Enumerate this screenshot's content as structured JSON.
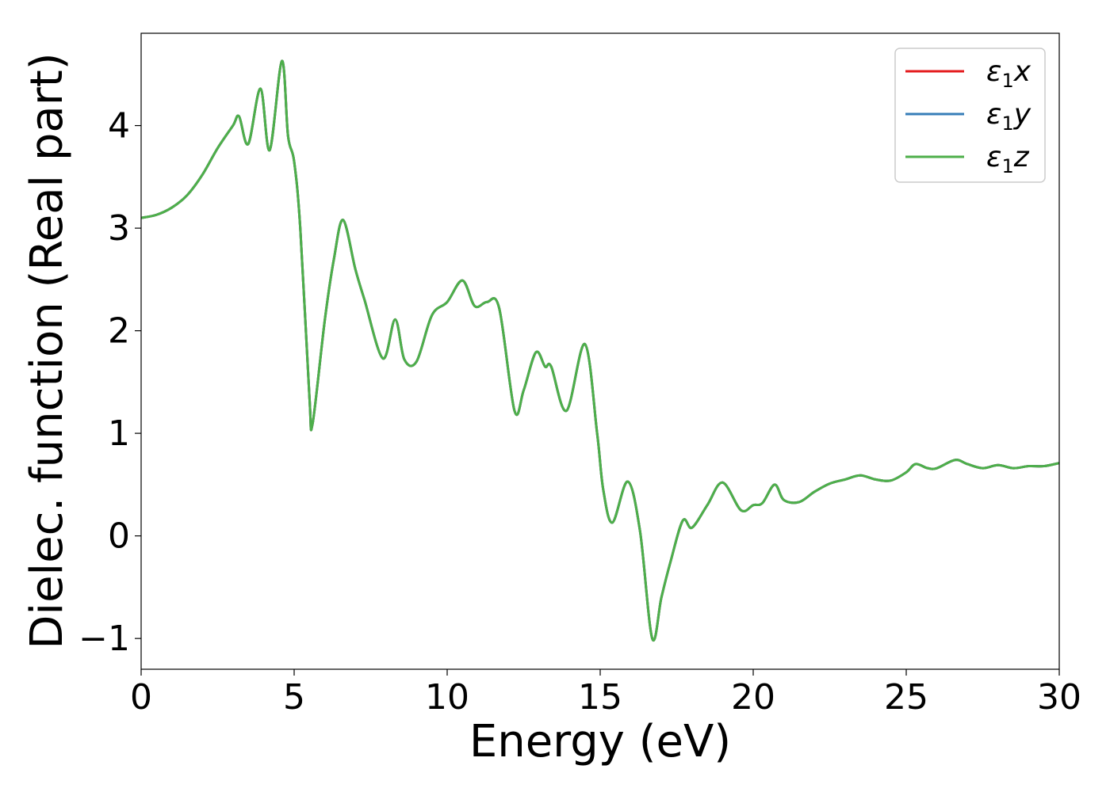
{
  "chart_data": {
    "type": "line",
    "title": "",
    "xlabel": "Energy (eV)",
    "ylabel": "Dielec. function (Real part)",
    "xlim": [
      0,
      30
    ],
    "ylim": [
      -1.3,
      4.9
    ],
    "xticks": [
      0,
      5,
      10,
      15,
      20,
      25,
      30
    ],
    "xtick_labels": [
      "0",
      "5",
      "10",
      "15",
      "20",
      "25",
      "30"
    ],
    "yticks": [
      -1,
      0,
      1,
      2,
      3,
      4
    ],
    "ytick_labels": [
      "−1",
      "0",
      "1",
      "2",
      "3",
      "4"
    ],
    "grid": false,
    "legend_position": "top-right",
    "x": [
      0,
      0.5,
      1,
      1.5,
      2,
      2.5,
      3,
      3.2,
      3.5,
      3.9,
      4.2,
      4.6,
      4.8,
      5.0,
      5.2,
      5.5,
      5.6,
      6.0,
      6.3,
      6.6,
      7.0,
      7.3,
      7.9,
      8.3,
      8.6,
      9.0,
      9.5,
      10.0,
      10.5,
      10.9,
      11.3,
      11.7,
      12.2,
      12.5,
      12.9,
      13.2,
      13.4,
      13.9,
      14.5,
      14.9,
      15.1,
      15.4,
      15.9,
      16.3,
      16.7,
      17.0,
      17.3,
      17.7,
      18.0,
      18.5,
      19.0,
      19.6,
      20.0,
      20.3,
      20.7,
      21.0,
      21.5,
      22.0,
      22.5,
      23.0,
      23.5,
      24.0,
      24.5,
      25.0,
      25.3,
      25.7,
      26.0,
      26.6,
      27.0,
      27.5,
      28.0,
      28.5,
      29.0,
      29.5,
      30.0
    ],
    "series": [
      {
        "name": "ε₁x",
        "color": "#e41a1c",
        "values": [
          3.1,
          3.13,
          3.2,
          3.32,
          3.52,
          3.78,
          4.0,
          4.09,
          3.82,
          4.36,
          3.76,
          4.63,
          3.9,
          3.65,
          3.0,
          1.35,
          1.09,
          2.1,
          2.7,
          3.08,
          2.6,
          2.3,
          1.73,
          2.11,
          1.72,
          1.7,
          2.15,
          2.28,
          2.49,
          2.24,
          2.28,
          2.22,
          1.22,
          1.42,
          1.79,
          1.65,
          1.65,
          1.22,
          1.87,
          1.0,
          0.45,
          0.13,
          0.53,
          0.05,
          -1.0,
          -0.6,
          -0.25,
          0.15,
          0.08,
          0.3,
          0.52,
          0.25,
          0.3,
          0.32,
          0.5,
          0.35,
          0.33,
          0.43,
          0.51,
          0.55,
          0.59,
          0.55,
          0.54,
          0.62,
          0.7,
          0.66,
          0.66,
          0.74,
          0.7,
          0.66,
          0.69,
          0.66,
          0.68,
          0.68,
          0.71
        ]
      },
      {
        "name": "ε₁y",
        "color": "#377eb8",
        "values": [
          3.1,
          3.13,
          3.2,
          3.32,
          3.52,
          3.78,
          4.0,
          4.09,
          3.82,
          4.36,
          3.76,
          4.63,
          3.9,
          3.65,
          3.0,
          1.35,
          1.09,
          2.1,
          2.7,
          3.08,
          2.6,
          2.3,
          1.73,
          2.11,
          1.72,
          1.7,
          2.15,
          2.28,
          2.49,
          2.24,
          2.28,
          2.22,
          1.22,
          1.42,
          1.79,
          1.65,
          1.65,
          1.22,
          1.87,
          1.0,
          0.45,
          0.13,
          0.53,
          0.05,
          -1.0,
          -0.6,
          -0.25,
          0.15,
          0.08,
          0.3,
          0.52,
          0.25,
          0.3,
          0.32,
          0.5,
          0.35,
          0.33,
          0.43,
          0.51,
          0.55,
          0.59,
          0.55,
          0.54,
          0.62,
          0.7,
          0.66,
          0.66,
          0.74,
          0.7,
          0.66,
          0.69,
          0.66,
          0.68,
          0.68,
          0.71
        ]
      },
      {
        "name": "ε₁z",
        "color": "#4daf4a",
        "values": [
          3.1,
          3.13,
          3.2,
          3.32,
          3.52,
          3.78,
          4.0,
          4.09,
          3.82,
          4.36,
          3.76,
          4.63,
          3.9,
          3.65,
          3.0,
          1.35,
          1.09,
          2.1,
          2.7,
          3.08,
          2.6,
          2.3,
          1.73,
          2.11,
          1.72,
          1.7,
          2.15,
          2.28,
          2.49,
          2.24,
          2.28,
          2.22,
          1.22,
          1.42,
          1.79,
          1.65,
          1.65,
          1.22,
          1.87,
          1.0,
          0.45,
          0.13,
          0.53,
          0.05,
          -1.0,
          -0.6,
          -0.25,
          0.15,
          0.08,
          0.3,
          0.52,
          0.25,
          0.3,
          0.32,
          0.5,
          0.35,
          0.33,
          0.43,
          0.51,
          0.55,
          0.59,
          0.55,
          0.54,
          0.62,
          0.7,
          0.66,
          0.66,
          0.74,
          0.7,
          0.66,
          0.69,
          0.66,
          0.68,
          0.68,
          0.71
        ]
      }
    ],
    "legend": [
      {
        "symbol": "ε",
        "sub": "1",
        "axis": "x",
        "color": "#e41a1c"
      },
      {
        "symbol": "ε",
        "sub": "1",
        "axis": "y",
        "color": "#377eb8"
      },
      {
        "symbol": "ε",
        "sub": "1",
        "axis": "z",
        "color": "#4daf4a"
      }
    ]
  }
}
